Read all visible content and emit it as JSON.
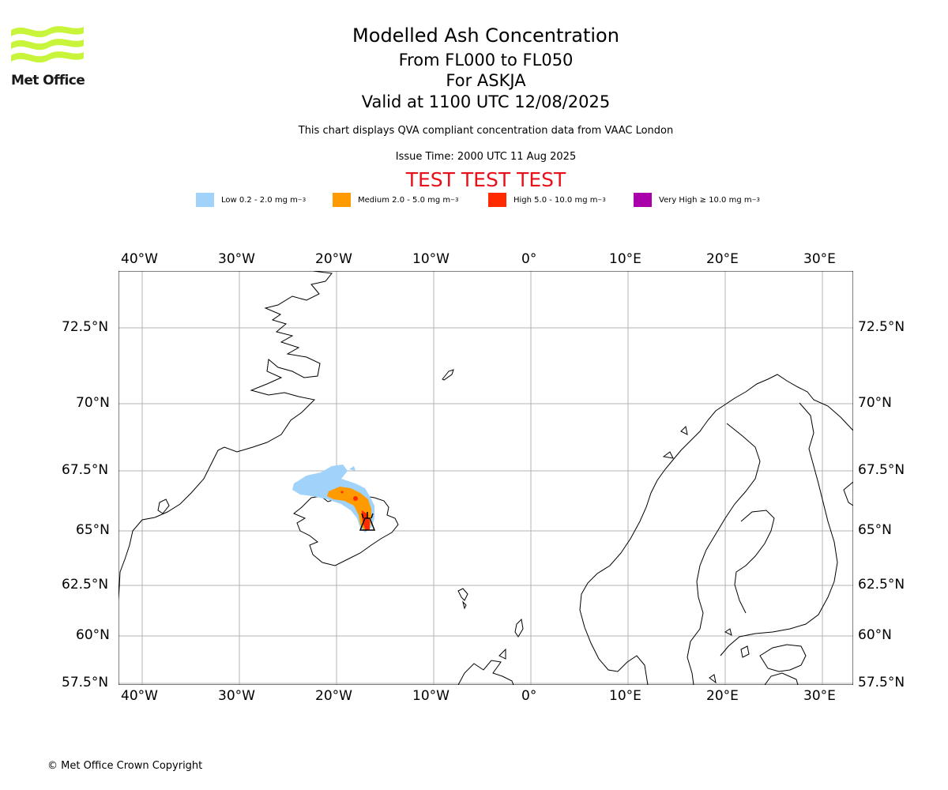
{
  "header": {
    "logo_text": "Met Office",
    "title": "Modelled Ash Concentration",
    "flight_levels": "From FL000 to FL050",
    "volcano": "For ASKJA",
    "valid_time": "Valid at 1100 UTC 12/08/2025",
    "description": "This chart displays QVA compliant concentration data from VAAC London",
    "issue_time": "Issue Time: 2000 UTC 11 Aug 2025",
    "test_banner": "TEST TEST TEST"
  },
  "legend": [
    {
      "label": "Low 0.2 - 2.0 mg m",
      "sup": "−3",
      "color": "#a0d2fa"
    },
    {
      "label": "Medium 2.0 - 5.0 mg m",
      "sup": "−3",
      "color": "#ff9a00"
    },
    {
      "label": "High 5.0 - 10.0 mg m",
      "sup": "−3",
      "color": "#ff2a00"
    },
    {
      "label": "Very High  ≥  10.0 mg m",
      "sup": "−3",
      "color": "#aa00aa"
    }
  ],
  "map": {
    "lon_ticks": [
      "40°W",
      "30°W",
      "20°W",
      "10°W",
      "0°",
      "10°E",
      "20°E",
      "30°E"
    ],
    "lat_ticks": [
      "72.5°N",
      "70°N",
      "67.5°N",
      "65°N",
      "62.5°N",
      "60°N",
      "57.5°N"
    ],
    "volcano_marker": "volcano-symbol"
  },
  "footer": {
    "copyright": "© Met Office Crown Copyright"
  }
}
